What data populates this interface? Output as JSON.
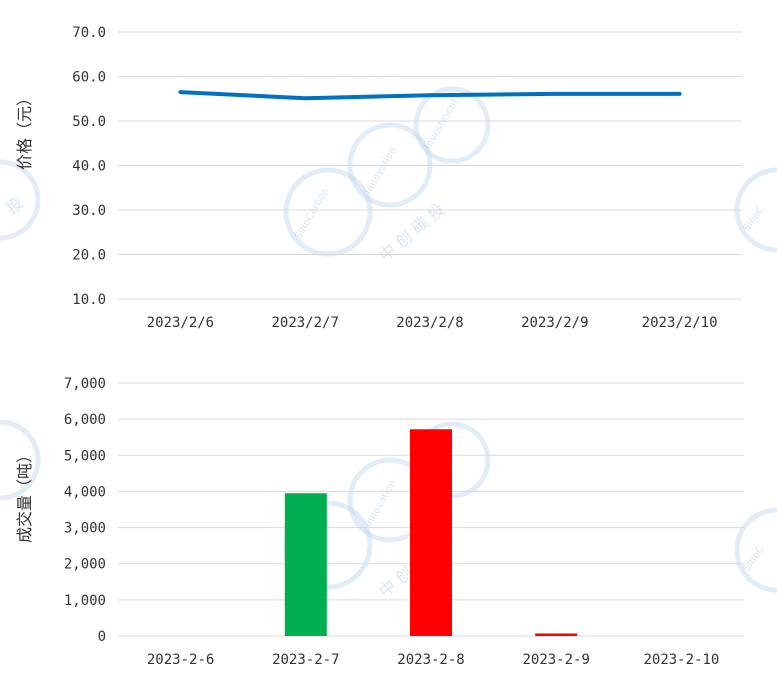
{
  "chart_data": [
    {
      "type": "line",
      "title": "",
      "ylabel": "价格（元）",
      "categories": [
        "2023/2/6",
        "2023/2/7",
        "2023/2/8",
        "2023/2/9",
        "2023/2/10"
      ],
      "values": [
        56.5,
        55.1,
        55.8,
        56.1,
        56.1
      ],
      "ylim": [
        10,
        70
      ],
      "yticks": [
        "10.0",
        "20.0",
        "30.0",
        "40.0",
        "50.0",
        "60.0",
        "70.0"
      ],
      "color": "#0070c0",
      "grid": true,
      "legend": "none"
    },
    {
      "type": "bar",
      "title": "",
      "ylabel": "成交量（吨）",
      "categories": [
        "2023-2-6",
        "2023-2-7",
        "2023-2-8",
        "2023-2-9",
        "2023-2-10"
      ],
      "values": [
        0,
        3950,
        5720,
        70,
        0
      ],
      "colors": [
        "#00b050",
        "#00b050",
        "#ff0000",
        "#ff0000",
        "#ff0000"
      ],
      "ylim": [
        0,
        7000
      ],
      "yticks": [
        "0",
        "1,000",
        "2,000",
        "3,000",
        "4,000",
        "5,000",
        "6,000",
        "7,000"
      ],
      "grid": true,
      "legend": "none"
    }
  ],
  "watermark": {
    "text_cn": "中 创 碳 投",
    "text_en1": "SinoCarbon",
    "text_en2": "Innovation",
    "text_en3": "Investment",
    "edge_cn": "投",
    "edge_en": "SinoC"
  }
}
